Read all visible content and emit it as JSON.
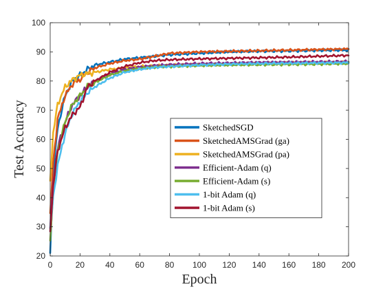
{
  "chart_data": {
    "type": "line",
    "title": "",
    "xlabel": "Epoch",
    "ylabel": "Test Accuracy",
    "xlim": [
      0,
      200
    ],
    "ylim": [
      20,
      100
    ],
    "xticks": [
      "0",
      "20",
      "40",
      "60",
      "80",
      "100",
      "120",
      "140",
      "160",
      "180",
      "200"
    ],
    "yticks": [
      "20",
      "30",
      "40",
      "50",
      "60",
      "70",
      "80",
      "90",
      "100"
    ],
    "grid": false,
    "legend_position": "center-right",
    "x": [
      0,
      2,
      5,
      10,
      15,
      20,
      25,
      30,
      40,
      50,
      60,
      70,
      80,
      100,
      120,
      140,
      160,
      180,
      200
    ],
    "series": [
      {
        "name": "SketchedSGD",
        "color": "#0072BD",
        "values": [
          21,
          48,
          64,
          75,
          80,
          82,
          84,
          85.5,
          86.5,
          87.5,
          88,
          88.5,
          89,
          89.5,
          90,
          90.2,
          90.3,
          90.5,
          90.6
        ]
      },
      {
        "name": "SketchedAMSGrad (ga)",
        "color": "#D95319",
        "values": [
          34,
          52,
          67,
          75,
          79,
          80.5,
          83,
          84.5,
          86,
          87,
          87.5,
          88.5,
          89.5,
          90,
          90.2,
          90.4,
          90.6,
          90.8,
          91
        ]
      },
      {
        "name": "SketchedAMSGrad (pa)",
        "color": "#EDB120",
        "values": [
          46,
          62,
          72,
          78,
          80.5,
          82,
          82.5,
          83,
          84,
          84.5,
          85,
          85.2,
          85.4,
          85.7,
          85.9,
          86,
          86.2,
          86.3,
          86.5
        ]
      },
      {
        "name": "Efficient-Adam (q)",
        "color": "#7E2F8E",
        "values": [
          30,
          45,
          57,
          66,
          72,
          75,
          78,
          80,
          82.5,
          84,
          84.8,
          85.3,
          85.6,
          86,
          86.2,
          86.4,
          86.5,
          86.6,
          86.7
        ]
      },
      {
        "name": "Efficient-Adam (s)",
        "color": "#77AC30",
        "values": [
          25,
          42,
          56,
          66,
          72,
          75,
          78,
          79.5,
          82,
          83.5,
          84.3,
          84.8,
          85,
          85.3,
          85.5,
          85.6,
          85.7,
          85.8,
          86
        ]
      },
      {
        "name": "1-bit Adam (q)",
        "color": "#4DBEEE",
        "values": [
          29,
          40,
          51,
          62,
          69,
          73,
          76,
          78,
          81,
          83,
          84,
          84.7,
          85,
          85.5,
          85.8,
          86,
          86.1,
          86.2,
          86.3
        ]
      },
      {
        "name": "1-bit Adam (s)",
        "color": "#A2142F",
        "values": [
          29,
          44,
          56,
          64,
          68.5,
          71,
          78,
          80,
          83,
          85,
          86.3,
          87,
          87.3,
          87.6,
          87.8,
          88,
          88.2,
          88.5,
          88.8
        ]
      }
    ]
  }
}
